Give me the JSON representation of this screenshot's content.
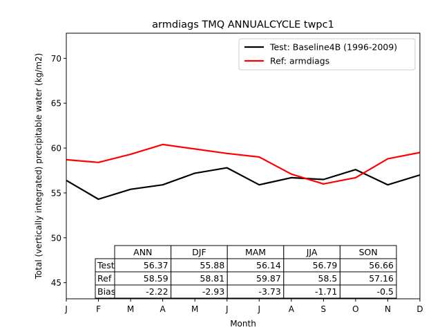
{
  "chart_data": {
    "type": "line",
    "title": "armdiags TMQ ANNUALCYCLE twpc1",
    "xlabel": "Month",
    "ylabel": "Total (vertically integrated) precipitable water (kg/m2)",
    "x": [
      "J",
      "F",
      "M",
      "A",
      "M",
      "J",
      "J",
      "A",
      "S",
      "O",
      "N",
      "D"
    ],
    "ylim": [
      43.2,
      72.8
    ],
    "yticks": [
      45,
      50,
      55,
      60,
      65,
      70
    ],
    "grid": false,
    "legend_position": "upper right",
    "series": [
      {
        "name": "Test: Baseline4B (1996-2009)",
        "color": "#000000",
        "values": [
          56.4,
          54.3,
          55.4,
          55.9,
          57.2,
          57.8,
          55.9,
          56.7,
          56.5,
          57.6,
          55.9,
          57.0
        ]
      },
      {
        "name": "Ref: armdiags",
        "color": "#ff0000",
        "values": [
          58.7,
          58.4,
          59.3,
          60.4,
          59.9,
          59.4,
          59.0,
          57.1,
          56.0,
          56.7,
          58.8,
          59.5
        ]
      }
    ],
    "table": {
      "columns": [
        "ANN",
        "DJF",
        "MAM",
        "JJA",
        "SON"
      ],
      "rows": [
        {
          "label": "Test",
          "values": [
            "56.37",
            "55.88",
            "56.14",
            "56.79",
            "56.66"
          ]
        },
        {
          "label": "Ref",
          "values": [
            "58.59",
            "58.81",
            "59.87",
            "58.5",
            "57.16"
          ]
        },
        {
          "label": "Bias",
          "values": [
            "-2.22",
            "-2.93",
            "-3.73",
            "-1.71",
            "-0.5"
          ]
        }
      ]
    }
  }
}
